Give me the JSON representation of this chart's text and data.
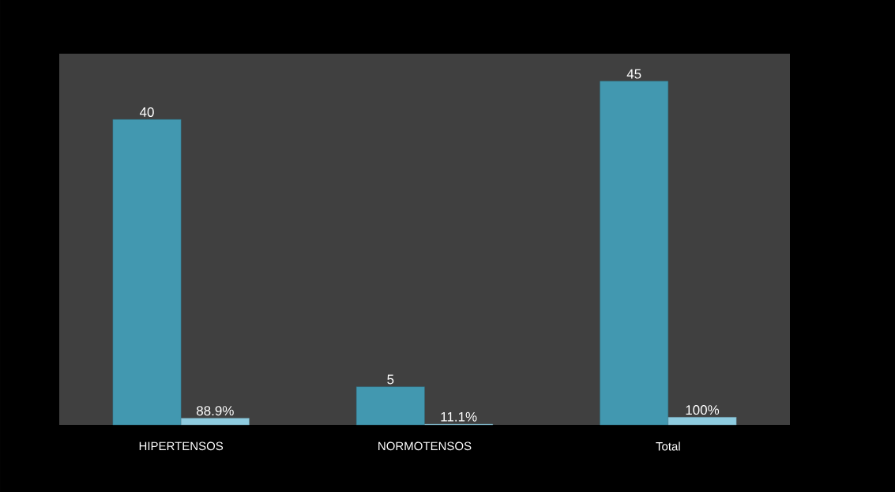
{
  "chart_data": {
    "type": "bar",
    "categories": [
      "HIPERTENSOS",
      "NORMOTENSOS",
      "Total"
    ],
    "series": [
      {
        "color": "#4298b0",
        "values": [
          40,
          5,
          45
        ],
        "value_labels": [
          "40",
          "5",
          "45"
        ]
      },
      {
        "color": "#8ecbdf",
        "values": [
          0.889,
          0.111,
          1
        ],
        "value_labels": [
          "88.9%",
          "11.1%",
          "100%"
        ]
      }
    ]
  }
}
